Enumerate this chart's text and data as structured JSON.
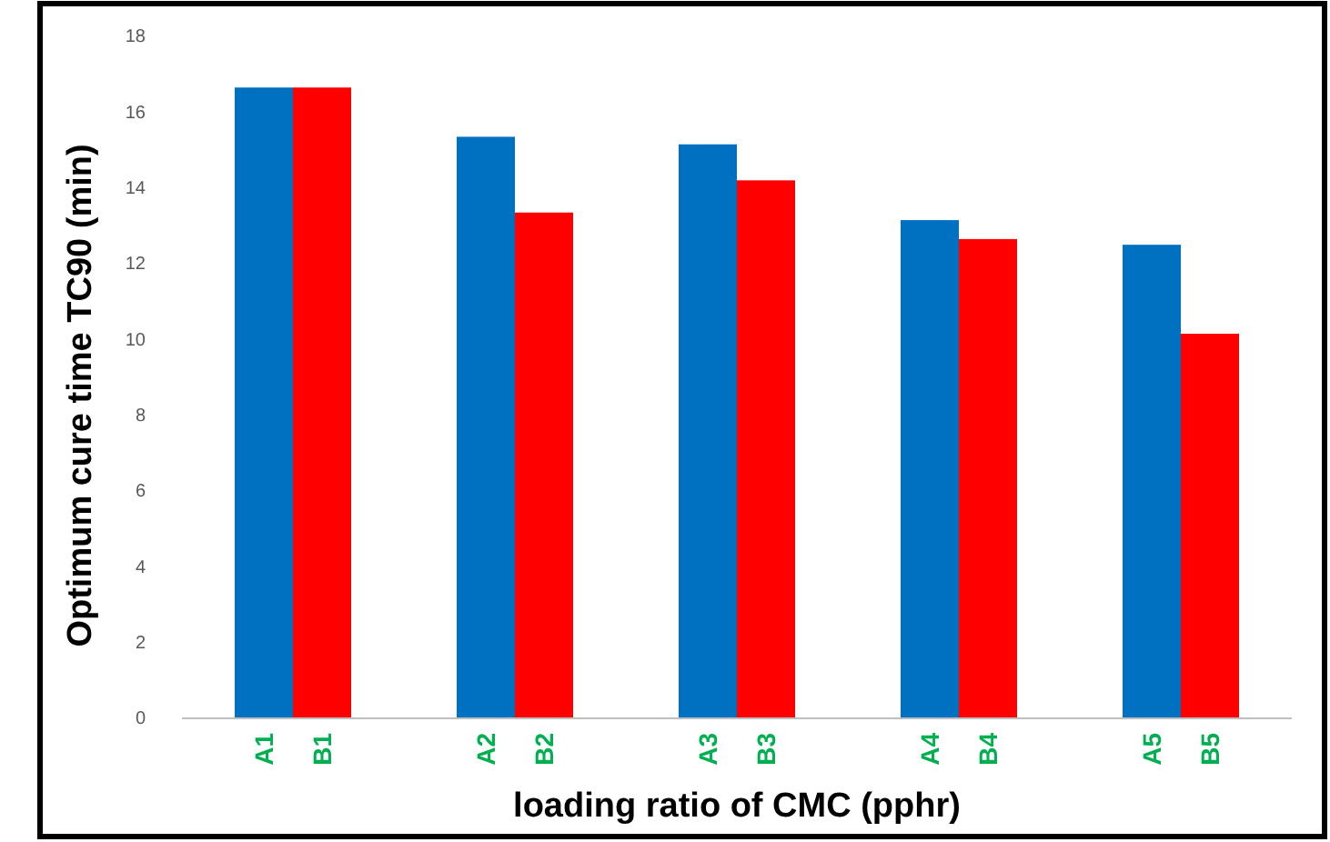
{
  "chart_data": {
    "type": "bar",
    "xlabel": "loading  ratio of CMC (pphr)",
    "ylabel": "Optimum cure time TC90 (min)",
    "categories": [
      "A1",
      "B1",
      "A2",
      "B2",
      "A3",
      "B3",
      "A4",
      "B4",
      "A5",
      "B5"
    ],
    "values": [
      16.65,
      16.65,
      15.35,
      13.35,
      15.15,
      14.2,
      13.15,
      12.65,
      12.5,
      10.15
    ],
    "colors": [
      "#0070c0",
      "#ff0000",
      "#0070c0",
      "#ff0000",
      "#0070c0",
      "#ff0000",
      "#0070c0",
      "#ff0000",
      "#0070c0",
      "#ff0000"
    ],
    "ylim": [
      0,
      18
    ],
    "yticks": [
      0,
      2,
      4,
      6,
      8,
      10,
      12,
      14,
      16,
      18
    ],
    "grid": false
  }
}
